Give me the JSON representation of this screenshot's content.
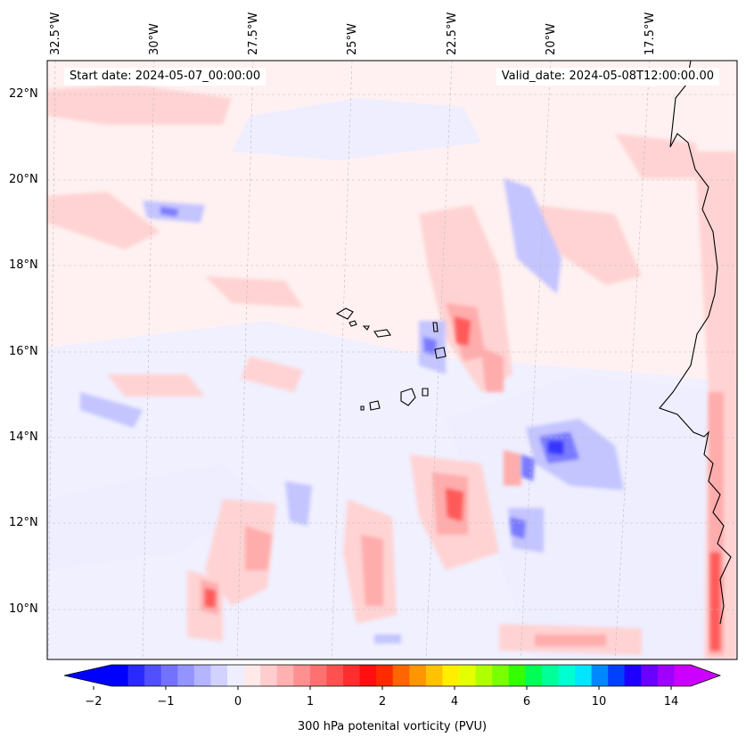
{
  "header": {
    "start_date": "Start date: 2024-05-07_00:00:00",
    "valid_date": "Valid_date: 2024-05-08T12:00:00.00"
  },
  "longitude_labels": [
    "32.5°W",
    "30°W",
    "27.5°W",
    "25°W",
    "22.5°W",
    "20°W",
    "17.5°W"
  ],
  "latitude_labels": [
    "22°N",
    "20°N",
    "18°N",
    "16°N",
    "14°N",
    "12°N",
    "10°N"
  ],
  "colorbar": {
    "label": "300 hPa potenital vorticity (PVU)",
    "ticks": [
      "−2",
      "−1",
      "0",
      "1",
      "2",
      "4",
      "6",
      "10",
      "14"
    ],
    "colors": [
      "#0000ff",
      "#2a2aff",
      "#5050ff",
      "#7272ff",
      "#9494ff",
      "#b4b4ff",
      "#d2d2ff",
      "#eeeeff",
      "#ffe9e9",
      "#ffcdcd",
      "#ffb0b0",
      "#ff9090",
      "#ff7070",
      "#ff5050",
      "#ff2e2e",
      "#ff0f0f",
      "#ff2b00",
      "#ff6500",
      "#ff9500",
      "#ffc200",
      "#ffee00",
      "#e4ff00",
      "#b0ff00",
      "#7aff00",
      "#33ff00",
      "#00ff55",
      "#00ff99",
      "#00ffd0",
      "#00e6ff",
      "#0088ff",
      "#0040ff",
      "#1e00ff",
      "#6a00ff",
      "#a000ff",
      "#cc00ff"
    ],
    "extend_low_color": "#0000ff",
    "extend_high_color": "#cc00ff"
  },
  "colors": {
    "background_field": "#fff0f0",
    "coastline": "#000000",
    "grid": "#bbbbbb"
  }
}
